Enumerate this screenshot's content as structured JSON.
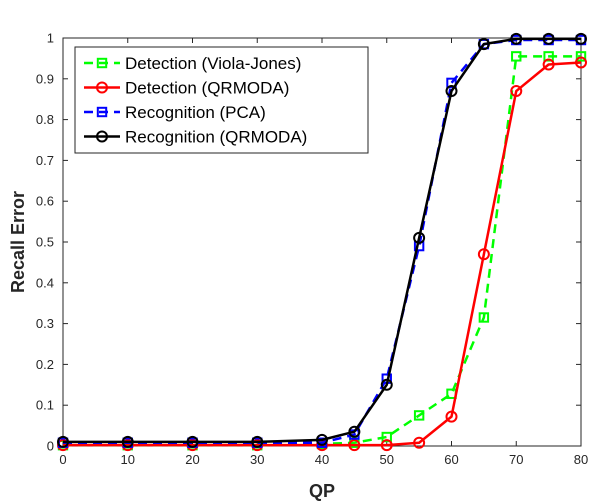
{
  "chart_data": {
    "type": "line",
    "xlabel": "QP",
    "ylabel": "Recall Error",
    "xlim": [
      0,
      80
    ],
    "ylim": [
      0,
      1
    ],
    "x_ticks": [
      "0",
      "10",
      "20",
      "30",
      "40",
      "50",
      "60",
      "70",
      "80"
    ],
    "y_ticks": [
      "0",
      "0.1",
      "0.2",
      "0.3",
      "0.4",
      "0.5",
      "0.6",
      "0.7",
      "0.8",
      "0.9",
      "1"
    ],
    "grid": false,
    "legend_position": "top-left",
    "x": [
      0,
      10,
      20,
      30,
      40,
      45,
      50,
      55,
      60,
      65,
      70,
      75,
      80
    ],
    "series": [
      {
        "name": "Detection (Viola-Jones)",
        "color": "#00ff00",
        "line_style": "dashed",
        "marker": "square",
        "values": [
          0.002,
          0.002,
          0.002,
          0.002,
          0.005,
          0.008,
          0.022,
          0.075,
          0.128,
          0.315,
          0.955,
          0.955,
          0.955
        ]
      },
      {
        "name": "Detection (QRMODA)",
        "color": "#ff0000",
        "line_style": "solid",
        "marker": "circle",
        "values": [
          0.002,
          0.002,
          0.002,
          0.002,
          0.002,
          0.002,
          0.002,
          0.008,
          0.072,
          0.47,
          0.87,
          0.935,
          0.94
        ]
      },
      {
        "name": "Recognition (PCA)",
        "color": "#0000ff",
        "line_style": "dashed",
        "marker": "square",
        "values": [
          0.008,
          0.008,
          0.008,
          0.008,
          0.008,
          0.028,
          0.165,
          0.49,
          0.89,
          0.985,
          0.995,
          0.995,
          0.995
        ]
      },
      {
        "name": "Recognition (QRMODA)",
        "color": "#000000",
        "line_style": "solid",
        "marker": "circle",
        "values": [
          0.01,
          0.01,
          0.01,
          0.01,
          0.015,
          0.035,
          0.15,
          0.51,
          0.87,
          0.985,
          0.998,
          0.998,
          0.998
        ]
      }
    ]
  }
}
